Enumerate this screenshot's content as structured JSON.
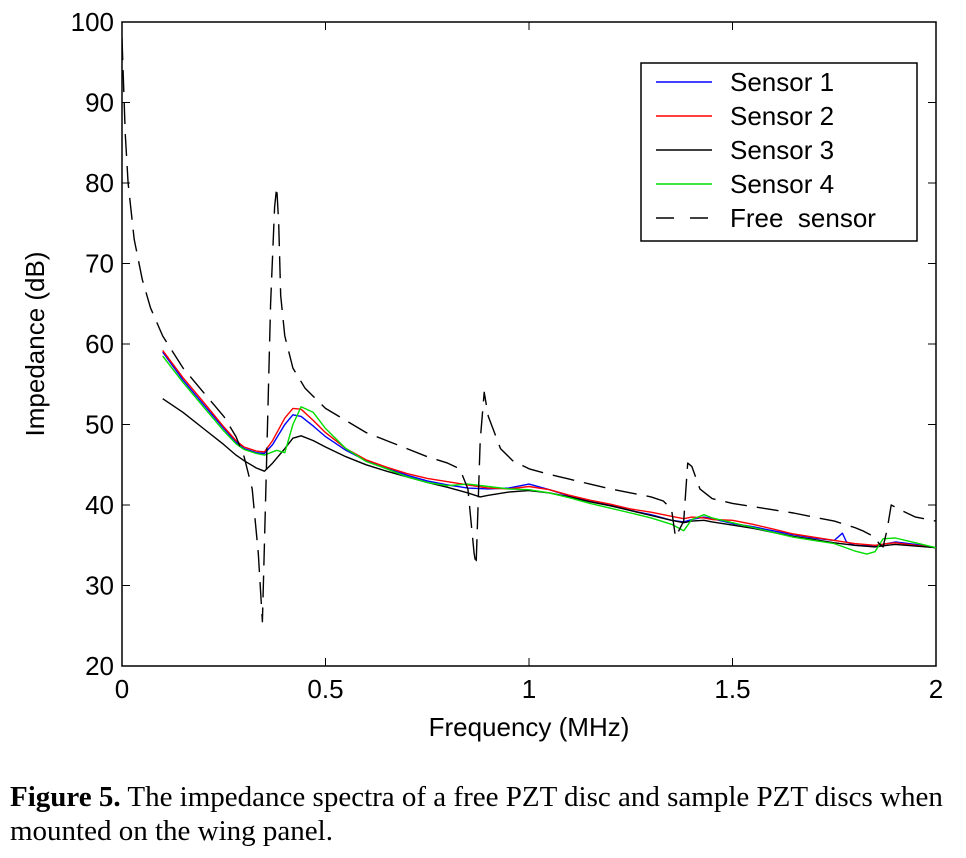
{
  "chart_data": {
    "type": "line",
    "title": "",
    "xlabel": "Frequency (MHz)",
    "ylabel": "Impedance (dB)",
    "xlim": [
      0,
      2
    ],
    "ylim": [
      20,
      100
    ],
    "xticks": [
      0,
      0.5,
      1,
      1.5,
      2
    ],
    "xtick_labels": [
      "0",
      "0.5",
      "1",
      "1.5",
      "2"
    ],
    "yticks": [
      20,
      30,
      40,
      50,
      60,
      70,
      80,
      90,
      100
    ],
    "ytick_labels": [
      "20",
      "30",
      "40",
      "50",
      "60",
      "70",
      "80",
      "90",
      "100"
    ],
    "grid": false,
    "legend_position": "top-right",
    "series": [
      {
        "name": "Sensor 1",
        "color": "#0000ff",
        "dash": "solid",
        "x": [
          0.1,
          0.15,
          0.2,
          0.25,
          0.28,
          0.3,
          0.33,
          0.35,
          0.37,
          0.4,
          0.42,
          0.44,
          0.47,
          0.5,
          0.55,
          0.6,
          0.65,
          0.7,
          0.75,
          0.8,
          0.85,
          0.9,
          0.95,
          1.0,
          1.05,
          1.1,
          1.15,
          1.2,
          1.25,
          1.3,
          1.35,
          1.38,
          1.4,
          1.43,
          1.45,
          1.5,
          1.55,
          1.6,
          1.65,
          1.7,
          1.75,
          1.77,
          1.78,
          1.8,
          1.85,
          1.88,
          1.9,
          1.95,
          2.0
        ],
        "y": [
          59.0,
          55.5,
          52.5,
          49.5,
          47.8,
          47.0,
          46.5,
          46.4,
          47.5,
          50.0,
          51.2,
          51.0,
          49.8,
          48.5,
          46.8,
          45.5,
          44.6,
          43.7,
          43.0,
          42.5,
          42.1,
          42.0,
          42.1,
          42.6,
          41.9,
          41.1,
          40.5,
          40.0,
          39.3,
          38.8,
          38.1,
          37.9,
          38.2,
          38.5,
          38.3,
          37.7,
          37.3,
          36.8,
          36.3,
          35.9,
          35.6,
          36.5,
          35.4,
          35.0,
          34.9,
          35.2,
          35.4,
          35.1,
          34.7
        ]
      },
      {
        "name": "Sensor 2",
        "color": "#ff0000",
        "dash": "solid",
        "x": [
          0.1,
          0.15,
          0.2,
          0.25,
          0.28,
          0.3,
          0.33,
          0.35,
          0.37,
          0.4,
          0.42,
          0.44,
          0.47,
          0.5,
          0.55,
          0.6,
          0.65,
          0.7,
          0.75,
          0.8,
          0.85,
          0.9,
          0.95,
          1.0,
          1.05,
          1.1,
          1.15,
          1.2,
          1.25,
          1.3,
          1.35,
          1.38,
          1.4,
          1.43,
          1.45,
          1.5,
          1.55,
          1.6,
          1.65,
          1.7,
          1.75,
          1.8,
          1.85,
          1.88,
          1.9,
          1.95,
          2.0
        ],
        "y": [
          59.2,
          55.8,
          52.8,
          49.7,
          48.0,
          47.2,
          46.7,
          46.6,
          48.0,
          50.8,
          52.0,
          51.9,
          50.5,
          49.0,
          47.0,
          45.6,
          44.7,
          43.9,
          43.3,
          42.9,
          42.5,
          42.1,
          42.0,
          42.3,
          41.9,
          41.2,
          40.6,
          40.1,
          39.5,
          39.1,
          38.6,
          38.3,
          38.5,
          38.4,
          38.2,
          38.1,
          37.6,
          37.0,
          36.4,
          36.0,
          35.6,
          35.2,
          35.0,
          35.2,
          35.3,
          35.0,
          34.7
        ]
      },
      {
        "name": "Sensor 3",
        "color": "#000000",
        "dash": "solid",
        "x": [
          0.1,
          0.15,
          0.2,
          0.25,
          0.28,
          0.3,
          0.33,
          0.35,
          0.37,
          0.4,
          0.42,
          0.44,
          0.47,
          0.5,
          0.55,
          0.6,
          0.65,
          0.7,
          0.75,
          0.8,
          0.85,
          0.88,
          0.9,
          0.95,
          1.0,
          1.05,
          1.1,
          1.15,
          1.2,
          1.25,
          1.3,
          1.35,
          1.38,
          1.4,
          1.43,
          1.45,
          1.5,
          1.55,
          1.6,
          1.65,
          1.7,
          1.75,
          1.8,
          1.85,
          1.88,
          1.9,
          1.95,
          2.0
        ],
        "y": [
          53.2,
          51.5,
          49.5,
          47.5,
          46.2,
          45.5,
          44.6,
          44.2,
          45.2,
          47.0,
          48.3,
          48.6,
          48.0,
          47.2,
          46.0,
          45.0,
          44.2,
          43.5,
          42.8,
          42.2,
          41.5,
          41.0,
          41.2,
          41.6,
          41.8,
          41.5,
          41.0,
          40.4,
          39.9,
          39.3,
          38.7,
          38.1,
          37.8,
          38.0,
          38.1,
          37.9,
          37.5,
          37.1,
          36.6,
          36.1,
          35.7,
          35.3,
          35.0,
          34.8,
          35.0,
          35.1,
          34.9,
          34.7
        ]
      },
      {
        "name": "Sensor 4",
        "color": "#00dd00",
        "dash": "solid",
        "x": [
          0.1,
          0.15,
          0.2,
          0.25,
          0.28,
          0.3,
          0.33,
          0.35,
          0.38,
          0.4,
          0.42,
          0.44,
          0.47,
          0.5,
          0.55,
          0.6,
          0.65,
          0.7,
          0.75,
          0.8,
          0.85,
          0.9,
          0.95,
          1.0,
          1.05,
          1.1,
          1.15,
          1.2,
          1.25,
          1.3,
          1.35,
          1.38,
          1.4,
          1.43,
          1.45,
          1.5,
          1.55,
          1.6,
          1.65,
          1.7,
          1.75,
          1.8,
          1.83,
          1.85,
          1.87,
          1.9,
          1.95,
          2.0
        ],
        "y": [
          58.5,
          55.2,
          52.2,
          49.2,
          47.6,
          46.9,
          46.4,
          46.2,
          46.8,
          46.5,
          50.0,
          52.2,
          51.5,
          49.5,
          47.0,
          45.4,
          44.5,
          43.5,
          42.8,
          42.4,
          42.6,
          42.3,
          42.0,
          41.9,
          41.5,
          40.9,
          40.2,
          39.6,
          39.0,
          38.4,
          37.6,
          36.8,
          38.2,
          38.8,
          38.4,
          37.8,
          37.2,
          36.6,
          36.0,
          35.6,
          35.2,
          34.3,
          33.9,
          34.2,
          35.8,
          35.9,
          35.3,
          34.7
        ]
      },
      {
        "name": "Free  sensor",
        "color": "#000000",
        "dash": "long-dash",
        "x": [
          0.0,
          0.003,
          0.008,
          0.015,
          0.03,
          0.05,
          0.07,
          0.1,
          0.15,
          0.2,
          0.25,
          0.28,
          0.3,
          0.32,
          0.335,
          0.345,
          0.355,
          0.365,
          0.375,
          0.38,
          0.385,
          0.39,
          0.4,
          0.42,
          0.45,
          0.5,
          0.55,
          0.6,
          0.65,
          0.7,
          0.75,
          0.8,
          0.83,
          0.85,
          0.865,
          0.87,
          0.88,
          0.89,
          0.9,
          0.93,
          0.96,
          1.0,
          1.05,
          1.1,
          1.15,
          1.2,
          1.25,
          1.3,
          1.33,
          1.35,
          1.36,
          1.38,
          1.39,
          1.4,
          1.42,
          1.45,
          1.5,
          1.55,
          1.6,
          1.65,
          1.7,
          1.75,
          1.8,
          1.82,
          1.85,
          1.86,
          1.87,
          1.88,
          1.89,
          1.92,
          1.95,
          2.0
        ],
        "y": [
          98.0,
          93.5,
          86.0,
          80.0,
          73.0,
          68.0,
          64.5,
          61.0,
          57.0,
          54.0,
          51.0,
          48.5,
          46.0,
          42.0,
          34.0,
          25.5,
          45.0,
          65.0,
          77.0,
          79.5,
          75.0,
          66.0,
          61.0,
          57.0,
          54.5,
          52.0,
          50.5,
          49.0,
          48.0,
          47.0,
          46.0,
          45.2,
          44.5,
          42.0,
          34.0,
          32.5,
          48.0,
          54.0,
          51.0,
          47.0,
          45.5,
          44.5,
          43.8,
          43.2,
          42.6,
          42.0,
          41.5,
          41.0,
          40.5,
          39.5,
          36.0,
          38.0,
          45.2,
          44.8,
          42.0,
          40.8,
          40.2,
          39.8,
          39.4,
          39.0,
          38.5,
          38.0,
          37.2,
          36.8,
          36.0,
          35.2,
          34.8,
          37.0,
          40.0,
          39.2,
          38.5,
          38.0
        ]
      }
    ]
  },
  "caption": {
    "label": "Figure 5.",
    "text": " The impedance spectra of a free PZT disc and sample PZT discs when mounted on the wing panel."
  }
}
